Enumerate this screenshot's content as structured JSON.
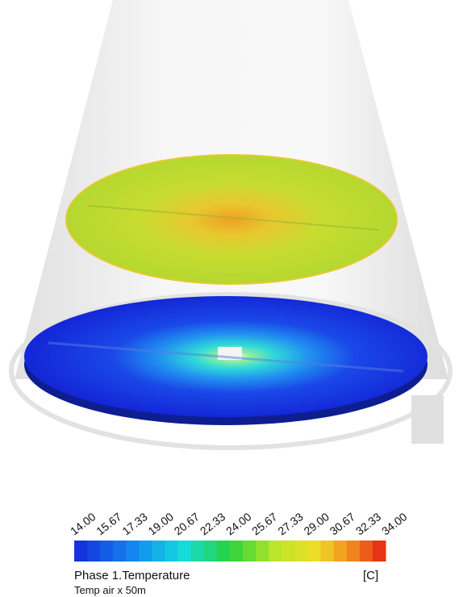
{
  "legend": {
    "ticks": [
      "14.00",
      "15.67",
      "17.33",
      "19.00",
      "20.67",
      "22.33",
      "24.00",
      "25.67",
      "27.33",
      "29.00",
      "30.67",
      "32.33",
      "34.00"
    ],
    "title": "Phase 1.Temperature",
    "unit": "[C]",
    "subtitle": "Temp air x 50m"
  }
}
